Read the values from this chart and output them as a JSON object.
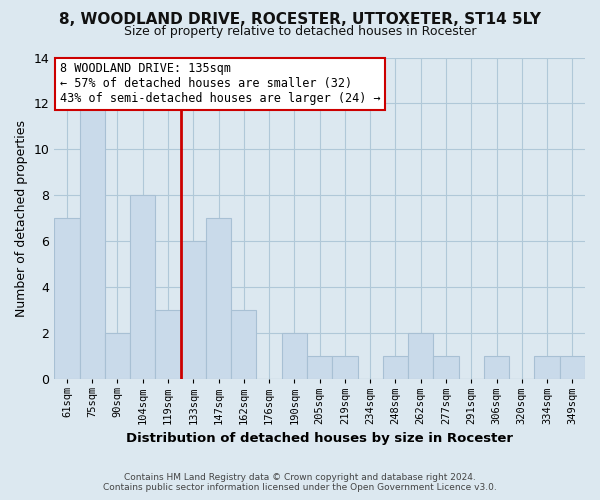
{
  "title": "8, WOODLAND DRIVE, ROCESTER, UTTOXETER, ST14 5LY",
  "subtitle": "Size of property relative to detached houses in Rocester",
  "xlabel": "Distribution of detached houses by size in Rocester",
  "ylabel": "Number of detached properties",
  "bar_color": "#c9daea",
  "bar_edgecolor": "#a8c0d4",
  "vline_color": "#cc0000",
  "annotation_title": "8 WOODLAND DRIVE: 135sqm",
  "annotation_line1": "← 57% of detached houses are smaller (32)",
  "annotation_line2": "43% of semi-detached houses are larger (24) →",
  "annotation_box_color": "#ffffff",
  "annotation_box_edgecolor": "#cc0000",
  "bins": [
    "61sqm",
    "75sqm",
    "90sqm",
    "104sqm",
    "119sqm",
    "133sqm",
    "147sqm",
    "162sqm",
    "176sqm",
    "190sqm",
    "205sqm",
    "219sqm",
    "234sqm",
    "248sqm",
    "262sqm",
    "277sqm",
    "291sqm",
    "306sqm",
    "320sqm",
    "334sqm",
    "349sqm"
  ],
  "values": [
    7,
    12,
    2,
    8,
    3,
    6,
    7,
    3,
    0,
    2,
    1,
    1,
    0,
    1,
    2,
    1,
    0,
    1,
    0,
    1,
    1
  ],
  "ylim": [
    0,
    14
  ],
  "yticks": [
    0,
    2,
    4,
    6,
    8,
    10,
    12,
    14
  ],
  "footer_line1": "Contains HM Land Registry data © Crown copyright and database right 2024.",
  "footer_line2": "Contains public sector information licensed under the Open Government Licence v3.0.",
  "background_color": "#dce8f0",
  "plot_bg_color": "#dce8f0",
  "grid_color": "#b0c8d8"
}
